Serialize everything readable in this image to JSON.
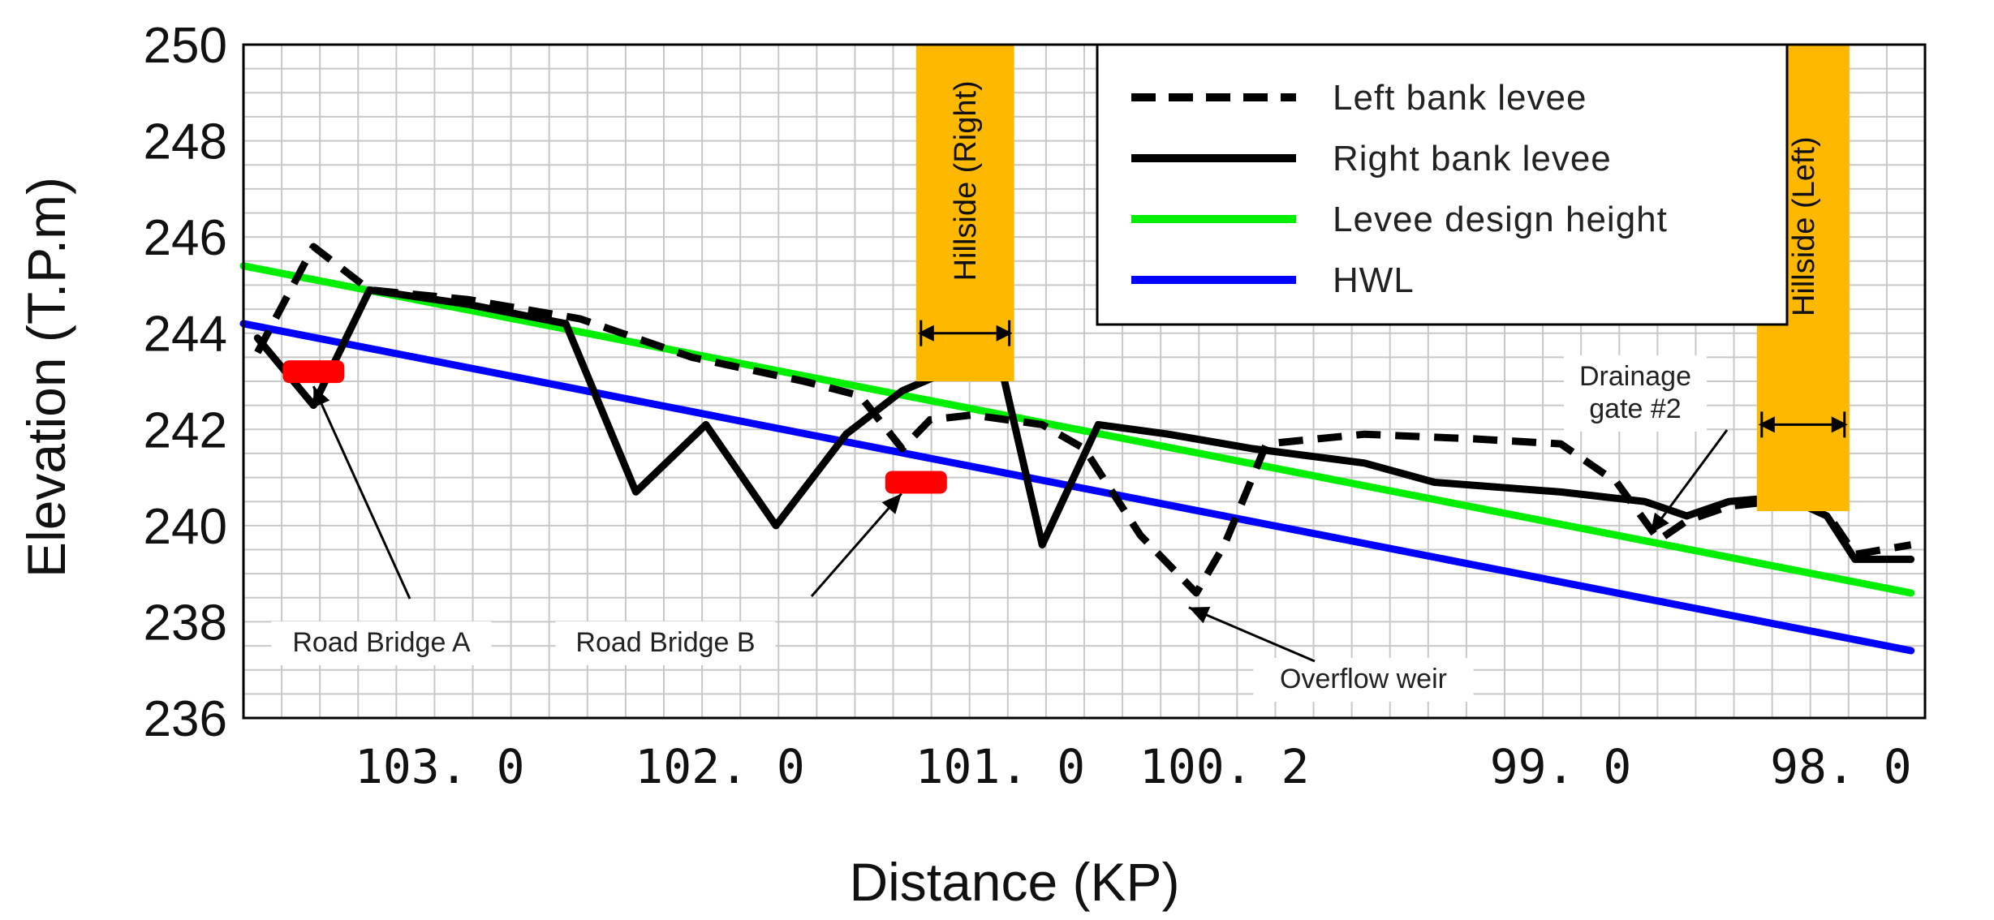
{
  "chart_data": {
    "type": "line",
    "xlabel": "Distance (KP)",
    "ylabel": "Elevation (T.P.m)",
    "ylim": [
      236,
      250
    ],
    "y_ticks": [
      236,
      238,
      240,
      242,
      244,
      246,
      248,
      250
    ],
    "x_range_kp": [
      103.7,
      97.7
    ],
    "x_ticks": [
      {
        "label": "103.0",
        "kp": 103.0
      },
      {
        "label": "102.0",
        "kp": 102.0
      },
      {
        "label": "101.0",
        "kp": 101.0
      },
      {
        "label": "100.2",
        "kp": 100.2
      },
      {
        "label": "99.0",
        "kp": 99.0
      },
      {
        "label": "98.0",
        "kp": 98.0
      }
    ],
    "grid": true,
    "legend_position": "top-right",
    "series": [
      {
        "name": "Left bank levee",
        "color": "#000000",
        "style": "dashed",
        "points": [
          [
            103.65,
            243.6
          ],
          [
            103.45,
            245.8
          ],
          [
            103.25,
            244.9
          ],
          [
            102.9,
            244.7
          ],
          [
            102.5,
            244.3
          ],
          [
            102.1,
            243.5
          ],
          [
            101.7,
            243.0
          ],
          [
            101.5,
            242.7
          ],
          [
            101.35,
            241.6
          ],
          [
            101.25,
            242.2
          ],
          [
            101.1,
            242.3
          ],
          [
            100.85,
            242.1
          ],
          [
            100.7,
            241.6
          ],
          [
            100.5,
            239.8
          ],
          [
            100.3,
            238.6
          ],
          [
            100.2,
            239.6
          ],
          [
            100.05,
            241.7
          ],
          [
            99.7,
            241.9
          ],
          [
            99.3,
            241.8
          ],
          [
            99.0,
            241.7
          ],
          [
            98.8,
            240.9
          ],
          [
            98.65,
            239.7
          ],
          [
            98.55,
            240.1
          ],
          [
            98.4,
            240.4
          ],
          [
            98.25,
            240.5
          ],
          [
            98.1,
            240.7
          ],
          [
            97.95,
            239.4
          ],
          [
            97.75,
            239.6
          ]
        ]
      },
      {
        "name": "Right bank levee",
        "color": "#000000",
        "style": "solid",
        "points": [
          [
            103.65,
            243.9
          ],
          [
            103.45,
            242.5
          ],
          [
            103.25,
            244.9
          ],
          [
            102.9,
            244.6
          ],
          [
            102.55,
            244.2
          ],
          [
            102.3,
            240.7
          ],
          [
            102.05,
            242.1
          ],
          [
            101.8,
            240.0
          ],
          [
            101.55,
            241.9
          ],
          [
            101.35,
            242.8
          ],
          [
            101.15,
            243.3
          ],
          [
            101.0,
            243.4
          ],
          [
            100.85,
            239.6
          ],
          [
            100.65,
            242.1
          ],
          [
            100.4,
            241.9
          ],
          [
            100.1,
            241.6
          ],
          [
            99.7,
            241.3
          ],
          [
            99.45,
            240.9
          ],
          [
            99.0,
            240.7
          ],
          [
            98.7,
            240.5
          ],
          [
            98.55,
            240.2
          ],
          [
            98.4,
            240.5
          ],
          [
            98.2,
            240.6
          ],
          [
            98.05,
            240.2
          ],
          [
            97.95,
            239.3
          ],
          [
            97.75,
            239.3
          ]
        ]
      },
      {
        "name": "Levee design height",
        "color": "#00ee00",
        "style": "solid",
        "points": [
          [
            103.7,
            245.4
          ],
          [
            97.75,
            238.6
          ]
        ]
      },
      {
        "name": "HWL",
        "color": "#0000ff",
        "style": "solid",
        "points": [
          [
            103.7,
            244.2
          ],
          [
            97.75,
            237.4
          ]
        ]
      }
    ],
    "annotations": [
      {
        "text": "Road Bridge A",
        "bridge_kp": 103.45,
        "bridge_elev": 243.2
      },
      {
        "text": "Road Bridge B",
        "bridge_kp": 101.3,
        "bridge_elev": 240.9
      },
      {
        "text": "Overflow weir",
        "target_kp": 100.35,
        "target_elev": 238.4
      },
      {
        "text_lines": [
          "Drainage",
          "gate #2"
        ],
        "target_kp": 98.68,
        "target_elev": 239.7
      }
    ],
    "hillsides": [
      {
        "label": "Hillside (Right)",
        "color": "#ffb800",
        "kp_from": 101.3,
        "kp_to": 100.95,
        "elev_from": 243.0,
        "elev_to": 250.0
      },
      {
        "label": "Hillside (Left)",
        "color": "#ffb800",
        "kp_from": 98.3,
        "kp_to": 97.97,
        "elev_from": 240.3,
        "elev_to": 250.0
      }
    ],
    "bridge_color": "#ff0000"
  }
}
